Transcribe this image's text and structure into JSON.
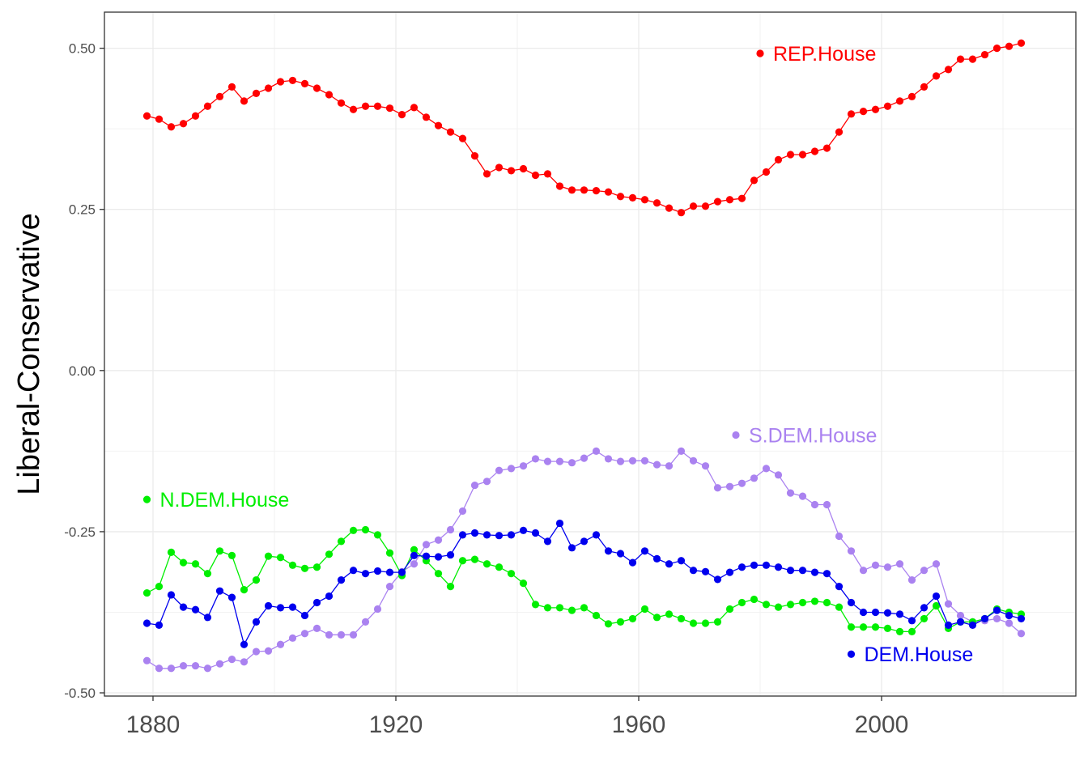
{
  "chart_data": {
    "type": "line",
    "title": "",
    "xlabel": "",
    "ylabel": "Liberal-Conservative",
    "xlim": [
      1872,
      2032
    ],
    "ylim": [
      -0.505,
      0.556
    ],
    "xticks": [
      1880,
      1920,
      1960,
      2000
    ],
    "xtick_labels": [
      "1880",
      "1920",
      "1960",
      "2000"
    ],
    "yticks": [
      -0.5,
      -0.25,
      0.0,
      0.25,
      0.5
    ],
    "ytick_labels": [
      "-0.50",
      "-0.25",
      "0.00",
      "0.25",
      "0.50"
    ],
    "grid": true,
    "x": [
      1879,
      1881,
      1883,
      1885,
      1887,
      1889,
      1891,
      1893,
      1895,
      1897,
      1899,
      1901,
      1903,
      1905,
      1907,
      1909,
      1911,
      1913,
      1915,
      1917,
      1919,
      1921,
      1923,
      1925,
      1927,
      1929,
      1931,
      1933,
      1935,
      1937,
      1939,
      1941,
      1943,
      1945,
      1947,
      1949,
      1951,
      1953,
      1955,
      1957,
      1959,
      1961,
      1963,
      1965,
      1967,
      1969,
      1971,
      1973,
      1975,
      1977,
      1979,
      1981,
      1983,
      1985,
      1987,
      1989,
      1991,
      1993,
      1995,
      1997,
      1999,
      2001,
      2003,
      2005,
      2007,
      2009,
      2011,
      2013,
      2015,
      2017,
      2019,
      2021,
      2023
    ],
    "series": [
      {
        "name": "REP.House",
        "color": "#ff0000",
        "values": [
          0.395,
          0.39,
          0.378,
          0.383,
          0.395,
          0.41,
          0.425,
          0.44,
          0.418,
          0.43,
          0.438,
          0.448,
          0.45,
          0.445,
          0.438,
          0.428,
          0.415,
          0.405,
          0.41,
          0.41,
          0.407,
          0.397,
          0.408,
          0.393,
          0.38,
          0.37,
          0.36,
          0.333,
          0.305,
          0.315,
          0.31,
          0.313,
          0.303,
          0.305,
          0.286,
          0.28,
          0.28,
          0.279,
          0.277,
          0.27,
          0.268,
          0.265,
          0.26,
          0.252,
          0.245,
          0.255,
          0.255,
          0.262,
          0.265,
          0.267,
          0.295,
          0.308,
          0.327,
          0.335,
          0.335,
          0.34,
          0.345,
          0.37,
          0.398,
          0.402,
          0.405,
          0.41,
          0.418,
          0.425,
          0.44,
          0.457,
          0.467,
          0.483,
          0.483,
          0.49,
          0.5,
          0.503,
          0.508
        ]
      },
      {
        "name": "S.DEM.House",
        "color": "#aa82f0",
        "values": [
          -0.45,
          -0.462,
          -0.462,
          -0.458,
          -0.458,
          -0.462,
          -0.455,
          -0.448,
          -0.452,
          -0.436,
          -0.435,
          -0.425,
          -0.415,
          -0.408,
          -0.4,
          -0.41,
          -0.41,
          -0.41,
          -0.39,
          -0.37,
          -0.335,
          -0.312,
          -0.3,
          -0.27,
          -0.263,
          -0.247,
          -0.218,
          -0.178,
          -0.172,
          -0.155,
          -0.152,
          -0.148,
          -0.137,
          -0.141,
          -0.141,
          -0.143,
          -0.136,
          -0.125,
          -0.137,
          -0.141,
          -0.14,
          -0.14,
          -0.146,
          -0.148,
          -0.125,
          -0.14,
          -0.148,
          -0.182,
          -0.18,
          -0.175,
          -0.167,
          -0.152,
          -0.162,
          -0.19,
          -0.195,
          -0.208,
          -0.208,
          -0.257,
          -0.28,
          -0.31,
          -0.302,
          -0.305,
          -0.3,
          -0.325,
          -0.31,
          -0.3,
          -0.362,
          -0.38,
          -0.39,
          -0.388,
          -0.385,
          -0.392,
          -0.408
        ]
      },
      {
        "name": "N.DEM.House",
        "color": "#00ee00",
        "values": [
          -0.345,
          -0.335,
          -0.282,
          -0.298,
          -0.3,
          -0.315,
          -0.28,
          -0.287,
          -0.34,
          -0.325,
          -0.288,
          -0.29,
          -0.302,
          -0.307,
          -0.305,
          -0.285,
          -0.265,
          -0.248,
          -0.247,
          -0.255,
          -0.283,
          -0.318,
          -0.278,
          -0.295,
          -0.315,
          -0.335,
          -0.295,
          -0.293,
          -0.3,
          -0.305,
          -0.315,
          -0.33,
          -0.363,
          -0.368,
          -0.368,
          -0.372,
          -0.368,
          -0.38,
          -0.393,
          -0.39,
          -0.385,
          -0.37,
          -0.383,
          -0.378,
          -0.385,
          -0.392,
          -0.392,
          -0.39,
          -0.37,
          -0.36,
          -0.355,
          -0.363,
          -0.367,
          -0.363,
          -0.36,
          -0.358,
          -0.36,
          -0.367,
          -0.398,
          -0.398,
          -0.398,
          -0.4,
          -0.405,
          -0.405,
          -0.385,
          -0.365,
          -0.4,
          -0.39,
          -0.39,
          -0.385,
          -0.37,
          -0.375,
          -0.378
        ]
      },
      {
        "name": "DEM.House",
        "color": "#0000ee",
        "values": [
          -0.392,
          -0.395,
          -0.348,
          -0.367,
          -0.371,
          -0.383,
          -0.342,
          -0.352,
          -0.425,
          -0.39,
          -0.365,
          -0.368,
          -0.367,
          -0.38,
          -0.36,
          -0.35,
          -0.325,
          -0.31,
          -0.315,
          -0.311,
          -0.313,
          -0.313,
          -0.287,
          -0.288,
          -0.289,
          -0.286,
          -0.255,
          -0.252,
          -0.255,
          -0.256,
          -0.255,
          -0.248,
          -0.252,
          -0.265,
          -0.237,
          -0.275,
          -0.265,
          -0.255,
          -0.28,
          -0.284,
          -0.298,
          -0.28,
          -0.292,
          -0.3,
          -0.295,
          -0.31,
          -0.312,
          -0.324,
          -0.313,
          -0.305,
          -0.302,
          -0.302,
          -0.305,
          -0.31,
          -0.31,
          -0.313,
          -0.315,
          -0.335,
          -0.36,
          -0.375,
          -0.375,
          -0.376,
          -0.378,
          -0.388,
          -0.368,
          -0.35,
          -0.395,
          -0.39,
          -0.395,
          -0.385,
          -0.372,
          -0.38,
          -0.385
        ]
      }
    ],
    "annotations": [
      {
        "series": "REP.House",
        "text": "REP.House",
        "x": 1980,
        "y": 0.492
      },
      {
        "series": "S.DEM.House",
        "text": "S.DEM.House",
        "x": 1976,
        "y": -0.1
      },
      {
        "series": "N.DEM.House",
        "text": "N.DEM.House",
        "x": 1879,
        "y": -0.2
      },
      {
        "series": "DEM.House",
        "text": "DEM.House",
        "x": 1995,
        "y": -0.44
      }
    ]
  }
}
